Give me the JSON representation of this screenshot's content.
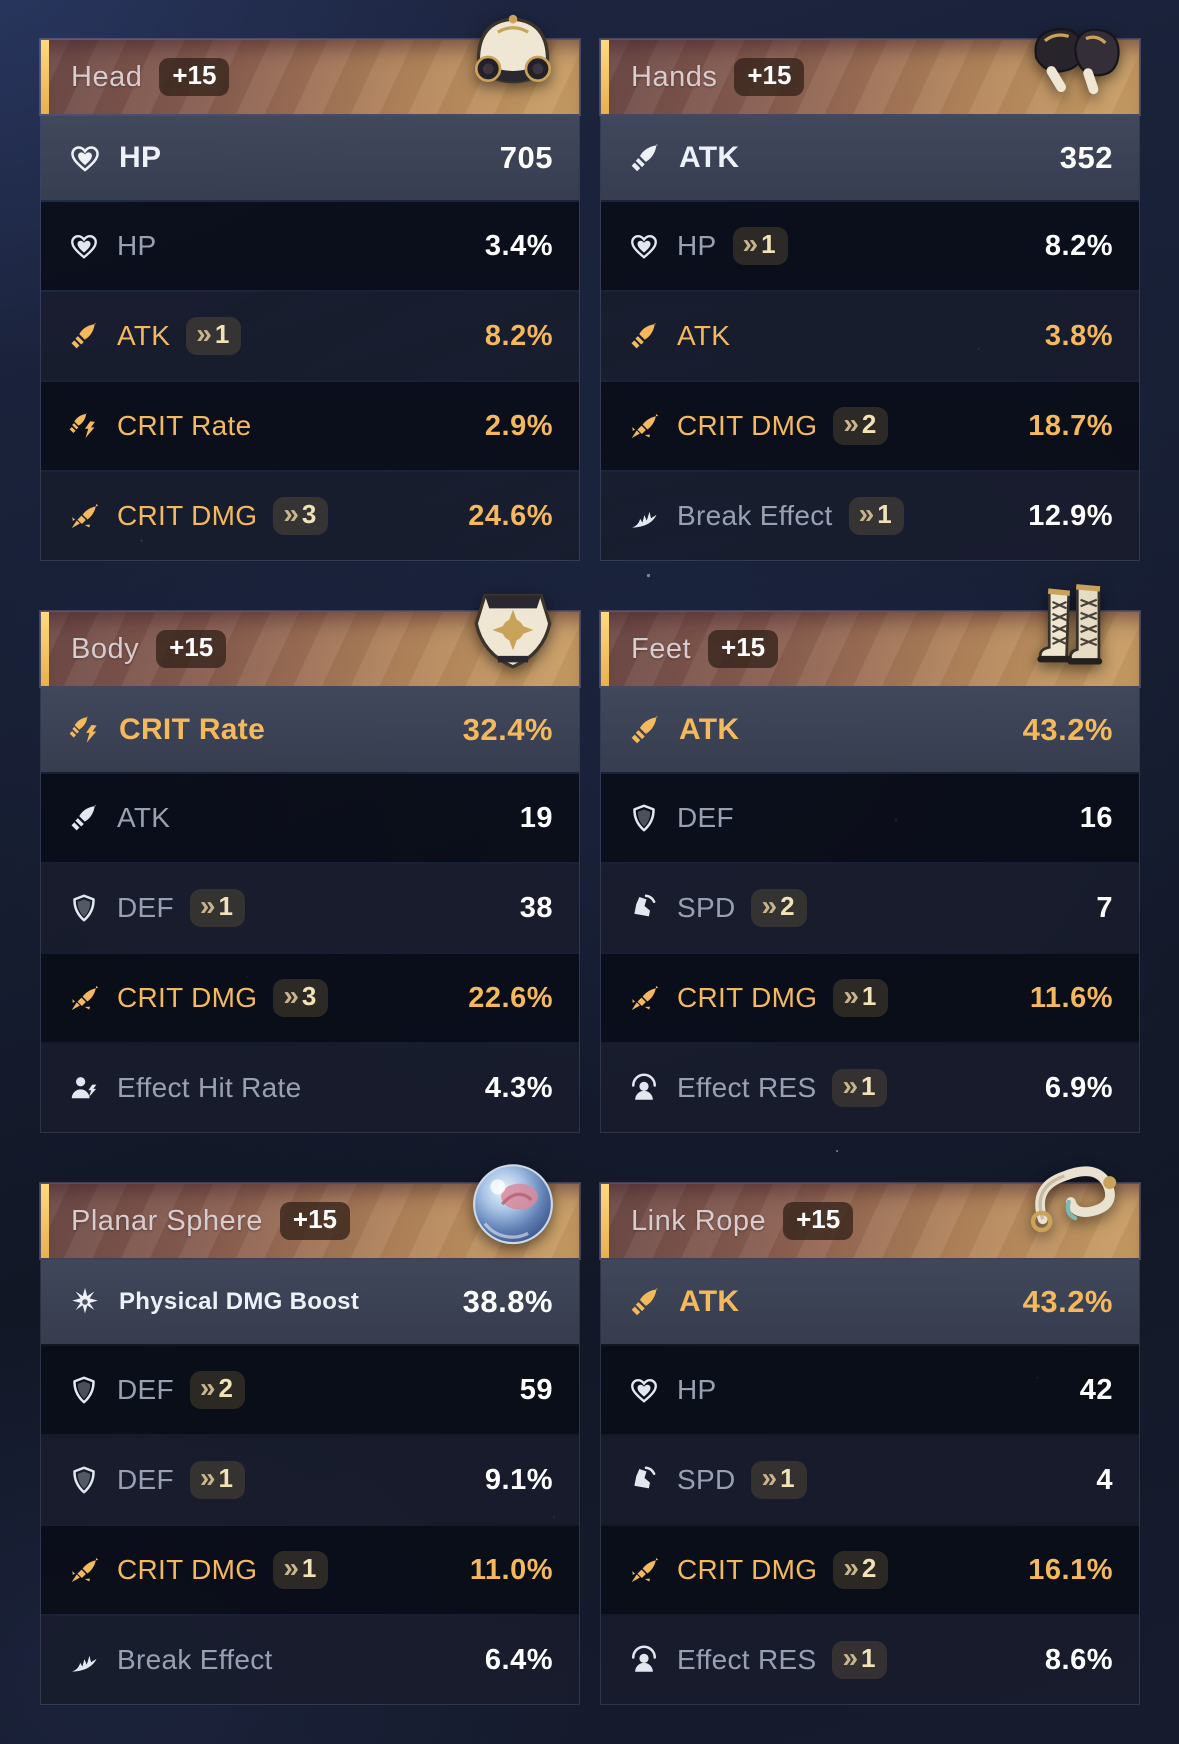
{
  "colors": {
    "accent_gold": "#f4b95c",
    "header_stripe": "#f2c05e",
    "header_gradient_left": "#6d4947",
    "header_gradient_right": "#c99e63",
    "main_row_bg": "#3e455c",
    "sub_row_dark": "#0b0f19",
    "sub_row_light": "#1a1e2e",
    "white_value": "#ffffff",
    "label_gray": "#98a1b3"
  },
  "cards": [
    {
      "slot": "Head",
      "level": "+15",
      "item_icon": "helmet",
      "main": {
        "icon": "hp",
        "label": "HP",
        "value": "705",
        "gold": false
      },
      "subs": [
        {
          "icon": "hp",
          "label": "HP",
          "rolls": null,
          "value": "3.4%",
          "gold": false
        },
        {
          "icon": "atk",
          "label": "ATK",
          "rolls": 1,
          "value": "8.2%",
          "gold": true
        },
        {
          "icon": "crit-rate",
          "label": "CRIT Rate",
          "rolls": null,
          "value": "2.9%",
          "gold": true
        },
        {
          "icon": "crit-dmg",
          "label": "CRIT DMG",
          "rolls": 3,
          "value": "24.6%",
          "gold": true
        }
      ]
    },
    {
      "slot": "Hands",
      "level": "+15",
      "item_icon": "gloves",
      "main": {
        "icon": "atk",
        "label": "ATK",
        "value": "352",
        "gold": false
      },
      "subs": [
        {
          "icon": "hp",
          "label": "HP",
          "rolls": 1,
          "value": "8.2%",
          "gold": false
        },
        {
          "icon": "atk",
          "label": "ATK",
          "rolls": null,
          "value": "3.8%",
          "gold": true
        },
        {
          "icon": "crit-dmg",
          "label": "CRIT DMG",
          "rolls": 2,
          "value": "18.7%",
          "gold": true
        },
        {
          "icon": "break-effect",
          "label": "Break Effect",
          "rolls": 1,
          "value": "12.9%",
          "gold": false
        }
      ]
    },
    {
      "slot": "Body",
      "level": "+15",
      "item_icon": "armor",
      "main": {
        "icon": "crit-rate",
        "label": "CRIT Rate",
        "value": "32.4%",
        "gold": true
      },
      "subs": [
        {
          "icon": "atk",
          "label": "ATK",
          "rolls": null,
          "value": "19",
          "gold": false
        },
        {
          "icon": "def",
          "label": "DEF",
          "rolls": 1,
          "value": "38",
          "gold": false
        },
        {
          "icon": "crit-dmg",
          "label": "CRIT DMG",
          "rolls": 3,
          "value": "22.6%",
          "gold": true
        },
        {
          "icon": "effect-hit",
          "label": "Effect Hit Rate",
          "rolls": null,
          "value": "4.3%",
          "gold": false
        }
      ]
    },
    {
      "slot": "Feet",
      "level": "+15",
      "item_icon": "boots",
      "main": {
        "icon": "atk",
        "label": "ATK",
        "value": "43.2%",
        "gold": true
      },
      "subs": [
        {
          "icon": "def",
          "label": "DEF",
          "rolls": null,
          "value": "16",
          "gold": false
        },
        {
          "icon": "spd",
          "label": "SPD",
          "rolls": 2,
          "value": "7",
          "gold": false
        },
        {
          "icon": "crit-dmg",
          "label": "CRIT DMG",
          "rolls": 1,
          "value": "11.6%",
          "gold": true
        },
        {
          "icon": "effect-res",
          "label": "Effect RES",
          "rolls": 1,
          "value": "6.9%",
          "gold": false
        }
      ]
    },
    {
      "slot": "Planar Sphere",
      "level": "+15",
      "item_icon": "sphere",
      "main": {
        "icon": "physical",
        "label": "Physical DMG Boost",
        "value": "38.8%",
        "gold": false
      },
      "subs": [
        {
          "icon": "def",
          "label": "DEF",
          "rolls": 2,
          "value": "59",
          "gold": false
        },
        {
          "icon": "def",
          "label": "DEF",
          "rolls": 1,
          "value": "9.1%",
          "gold": false
        },
        {
          "icon": "crit-dmg",
          "label": "CRIT DMG",
          "rolls": 1,
          "value": "11.0%",
          "gold": true
        },
        {
          "icon": "break-effect",
          "label": "Break Effect",
          "rolls": null,
          "value": "6.4%",
          "gold": false
        }
      ]
    },
    {
      "slot": "Link Rope",
      "level": "+15",
      "item_icon": "rope",
      "main": {
        "icon": "atk",
        "label": "ATK",
        "value": "43.2%",
        "gold": true
      },
      "subs": [
        {
          "icon": "hp",
          "label": "HP",
          "rolls": null,
          "value": "42",
          "gold": false
        },
        {
          "icon": "spd",
          "label": "SPD",
          "rolls": 1,
          "value": "4",
          "gold": false
        },
        {
          "icon": "crit-dmg",
          "label": "CRIT DMG",
          "rolls": 2,
          "value": "16.1%",
          "gold": true
        },
        {
          "icon": "effect-res",
          "label": "Effect RES",
          "rolls": 1,
          "value": "8.6%",
          "gold": false
        }
      ]
    }
  ]
}
